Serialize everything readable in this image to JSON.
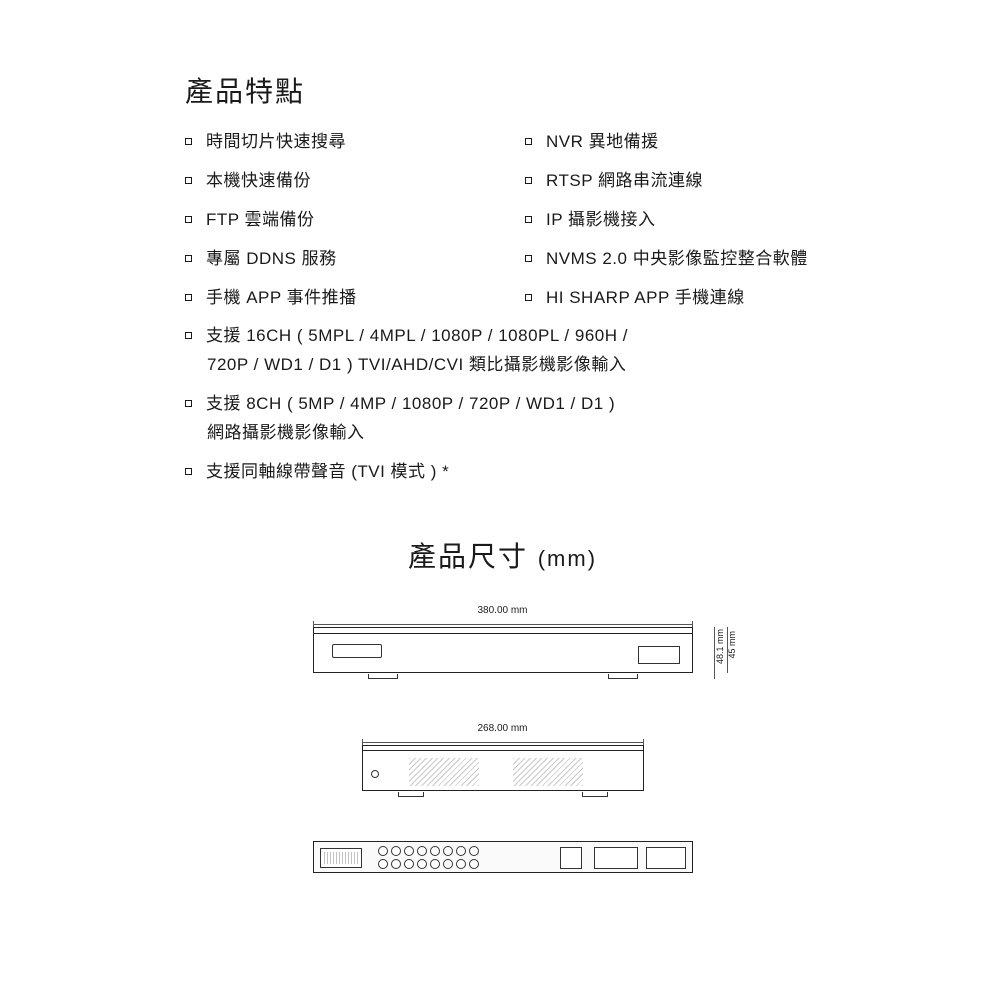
{
  "colors": {
    "text": "#1a1a1a",
    "line": "#555555",
    "background": "#ffffff"
  },
  "features": {
    "title": "產品特點",
    "pairs": [
      {
        "left": "時間切片快速搜尋",
        "right": "NVR 異地備援"
      },
      {
        "left": "本機快速備份",
        "right": "RTSP 網路串流連線"
      },
      {
        "left": "FTP 雲端備份",
        "right": "IP 攝影機接入"
      },
      {
        "left": "專屬 DDNS 服務",
        "right": "NVMS 2.0 中央影像監控整合軟體"
      },
      {
        "left": "手機 APP 事件推播",
        "right": "HI SHARP APP 手機連線"
      }
    ],
    "full": [
      {
        "line1": "支援 16CH ( 5MPL / 4MPL / 1080P / 1080PL / 960H /",
        "line2": "720P / WD1 / D1 ) TVI/AHD/CVI 類比攝影機影像輸入"
      },
      {
        "line1": "支援 8CH ( 5MP / 4MP / 1080P / 720P / WD1 / D1 )",
        "line2": "網路攝影機影像輸入"
      },
      {
        "line1": "支援同軸線帶聲音 (TVI 模式 ) *",
        "line2": ""
      }
    ]
  },
  "dimensions": {
    "title_main": "產品尺寸",
    "title_unit": "(mm)",
    "front": {
      "width_label": "380.00 mm",
      "height1_label": "45 mm",
      "height2_label": "48.1 mm"
    },
    "side": {
      "depth_label": "268.00 mm"
    },
    "back": {
      "bnc_per_row": 8
    }
  }
}
